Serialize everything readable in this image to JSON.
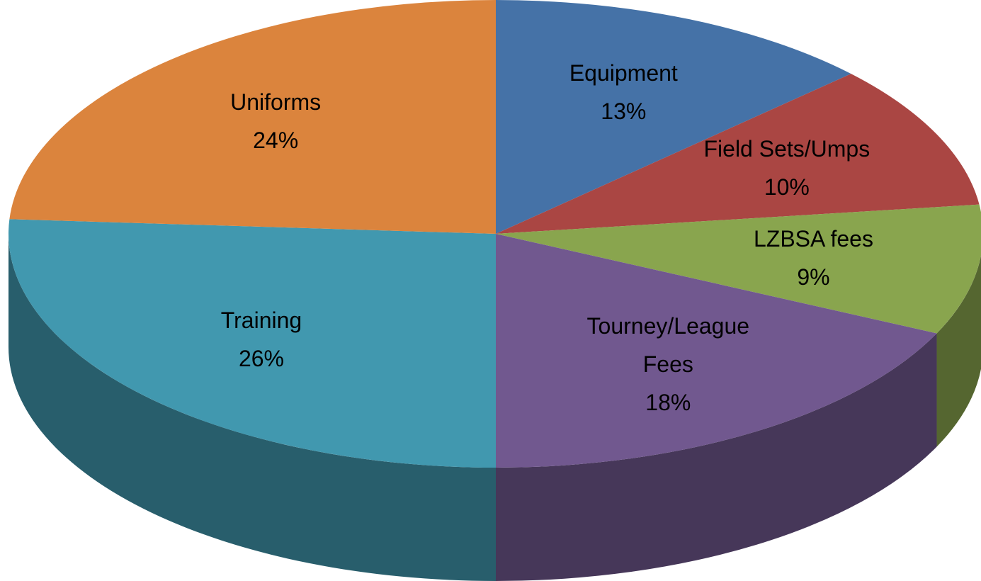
{
  "chart_data": {
    "type": "pie",
    "categories": [
      "Equipment",
      "Field Sets/Umps",
      "LZBSA fees",
      "Tourney/League Fees",
      "Training",
      "Uniforms"
    ],
    "values": [
      13,
      10,
      9,
      18,
      26,
      24
    ],
    "value_labels": [
      "13%",
      "10%",
      "9%",
      "18%",
      "26%",
      "24%"
    ],
    "colors": [
      "#4572a7",
      "#aa4643",
      "#89a54e",
      "#71588f",
      "#4198af",
      "#db843d"
    ]
  }
}
